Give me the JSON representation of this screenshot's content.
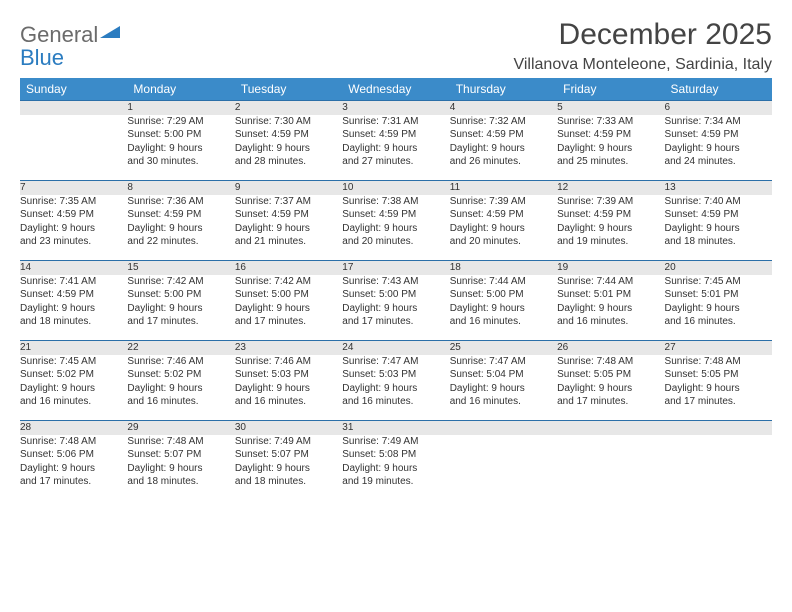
{
  "brand": {
    "general": "General",
    "blue": "Blue"
  },
  "header": {
    "month_title": "December 2025",
    "location": "Villanova Monteleone, Sardinia, Italy"
  },
  "colors": {
    "header_bg": "#3b8bc9",
    "header_text": "#ffffff",
    "daynum_bg": "#e7e7e7",
    "daynum_border": "#2b6fa8",
    "page_bg": "#ffffff",
    "logo_gray": "#6b6b6b",
    "logo_blue": "#2b7cc0"
  },
  "weekdays": [
    "Sunday",
    "Monday",
    "Tuesday",
    "Wednesday",
    "Thursday",
    "Friday",
    "Saturday"
  ],
  "weeks": [
    {
      "nums": [
        "",
        "1",
        "2",
        "3",
        "4",
        "5",
        "6"
      ],
      "cells": [
        {},
        {
          "sunrise": "Sunrise: 7:29 AM",
          "sunset": "Sunset: 5:00 PM",
          "dl1": "Daylight: 9 hours",
          "dl2": "and 30 minutes."
        },
        {
          "sunrise": "Sunrise: 7:30 AM",
          "sunset": "Sunset: 4:59 PM",
          "dl1": "Daylight: 9 hours",
          "dl2": "and 28 minutes."
        },
        {
          "sunrise": "Sunrise: 7:31 AM",
          "sunset": "Sunset: 4:59 PM",
          "dl1": "Daylight: 9 hours",
          "dl2": "and 27 minutes."
        },
        {
          "sunrise": "Sunrise: 7:32 AM",
          "sunset": "Sunset: 4:59 PM",
          "dl1": "Daylight: 9 hours",
          "dl2": "and 26 minutes."
        },
        {
          "sunrise": "Sunrise: 7:33 AM",
          "sunset": "Sunset: 4:59 PM",
          "dl1": "Daylight: 9 hours",
          "dl2": "and 25 minutes."
        },
        {
          "sunrise": "Sunrise: 7:34 AM",
          "sunset": "Sunset: 4:59 PM",
          "dl1": "Daylight: 9 hours",
          "dl2": "and 24 minutes."
        }
      ]
    },
    {
      "nums": [
        "7",
        "8",
        "9",
        "10",
        "11",
        "12",
        "13"
      ],
      "cells": [
        {
          "sunrise": "Sunrise: 7:35 AM",
          "sunset": "Sunset: 4:59 PM",
          "dl1": "Daylight: 9 hours",
          "dl2": "and 23 minutes."
        },
        {
          "sunrise": "Sunrise: 7:36 AM",
          "sunset": "Sunset: 4:59 PM",
          "dl1": "Daylight: 9 hours",
          "dl2": "and 22 minutes."
        },
        {
          "sunrise": "Sunrise: 7:37 AM",
          "sunset": "Sunset: 4:59 PM",
          "dl1": "Daylight: 9 hours",
          "dl2": "and 21 minutes."
        },
        {
          "sunrise": "Sunrise: 7:38 AM",
          "sunset": "Sunset: 4:59 PM",
          "dl1": "Daylight: 9 hours",
          "dl2": "and 20 minutes."
        },
        {
          "sunrise": "Sunrise: 7:39 AM",
          "sunset": "Sunset: 4:59 PM",
          "dl1": "Daylight: 9 hours",
          "dl2": "and 20 minutes."
        },
        {
          "sunrise": "Sunrise: 7:39 AM",
          "sunset": "Sunset: 4:59 PM",
          "dl1": "Daylight: 9 hours",
          "dl2": "and 19 minutes."
        },
        {
          "sunrise": "Sunrise: 7:40 AM",
          "sunset": "Sunset: 4:59 PM",
          "dl1": "Daylight: 9 hours",
          "dl2": "and 18 minutes."
        }
      ]
    },
    {
      "nums": [
        "14",
        "15",
        "16",
        "17",
        "18",
        "19",
        "20"
      ],
      "cells": [
        {
          "sunrise": "Sunrise: 7:41 AM",
          "sunset": "Sunset: 4:59 PM",
          "dl1": "Daylight: 9 hours",
          "dl2": "and 18 minutes."
        },
        {
          "sunrise": "Sunrise: 7:42 AM",
          "sunset": "Sunset: 5:00 PM",
          "dl1": "Daylight: 9 hours",
          "dl2": "and 17 minutes."
        },
        {
          "sunrise": "Sunrise: 7:42 AM",
          "sunset": "Sunset: 5:00 PM",
          "dl1": "Daylight: 9 hours",
          "dl2": "and 17 minutes."
        },
        {
          "sunrise": "Sunrise: 7:43 AM",
          "sunset": "Sunset: 5:00 PM",
          "dl1": "Daylight: 9 hours",
          "dl2": "and 17 minutes."
        },
        {
          "sunrise": "Sunrise: 7:44 AM",
          "sunset": "Sunset: 5:00 PM",
          "dl1": "Daylight: 9 hours",
          "dl2": "and 16 minutes."
        },
        {
          "sunrise": "Sunrise: 7:44 AM",
          "sunset": "Sunset: 5:01 PM",
          "dl1": "Daylight: 9 hours",
          "dl2": "and 16 minutes."
        },
        {
          "sunrise": "Sunrise: 7:45 AM",
          "sunset": "Sunset: 5:01 PM",
          "dl1": "Daylight: 9 hours",
          "dl2": "and 16 minutes."
        }
      ]
    },
    {
      "nums": [
        "21",
        "22",
        "23",
        "24",
        "25",
        "26",
        "27"
      ],
      "cells": [
        {
          "sunrise": "Sunrise: 7:45 AM",
          "sunset": "Sunset: 5:02 PM",
          "dl1": "Daylight: 9 hours",
          "dl2": "and 16 minutes."
        },
        {
          "sunrise": "Sunrise: 7:46 AM",
          "sunset": "Sunset: 5:02 PM",
          "dl1": "Daylight: 9 hours",
          "dl2": "and 16 minutes."
        },
        {
          "sunrise": "Sunrise: 7:46 AM",
          "sunset": "Sunset: 5:03 PM",
          "dl1": "Daylight: 9 hours",
          "dl2": "and 16 minutes."
        },
        {
          "sunrise": "Sunrise: 7:47 AM",
          "sunset": "Sunset: 5:03 PM",
          "dl1": "Daylight: 9 hours",
          "dl2": "and 16 minutes."
        },
        {
          "sunrise": "Sunrise: 7:47 AM",
          "sunset": "Sunset: 5:04 PM",
          "dl1": "Daylight: 9 hours",
          "dl2": "and 16 minutes."
        },
        {
          "sunrise": "Sunrise: 7:48 AM",
          "sunset": "Sunset: 5:05 PM",
          "dl1": "Daylight: 9 hours",
          "dl2": "and 17 minutes."
        },
        {
          "sunrise": "Sunrise: 7:48 AM",
          "sunset": "Sunset: 5:05 PM",
          "dl1": "Daylight: 9 hours",
          "dl2": "and 17 minutes."
        }
      ]
    },
    {
      "nums": [
        "28",
        "29",
        "30",
        "31",
        "",
        "",
        ""
      ],
      "cells": [
        {
          "sunrise": "Sunrise: 7:48 AM",
          "sunset": "Sunset: 5:06 PM",
          "dl1": "Daylight: 9 hours",
          "dl2": "and 17 minutes."
        },
        {
          "sunrise": "Sunrise: 7:48 AM",
          "sunset": "Sunset: 5:07 PM",
          "dl1": "Daylight: 9 hours",
          "dl2": "and 18 minutes."
        },
        {
          "sunrise": "Sunrise: 7:49 AM",
          "sunset": "Sunset: 5:07 PM",
          "dl1": "Daylight: 9 hours",
          "dl2": "and 18 minutes."
        },
        {
          "sunrise": "Sunrise: 7:49 AM",
          "sunset": "Sunset: 5:08 PM",
          "dl1": "Daylight: 9 hours",
          "dl2": "and 19 minutes."
        },
        {},
        {},
        {}
      ]
    }
  ]
}
